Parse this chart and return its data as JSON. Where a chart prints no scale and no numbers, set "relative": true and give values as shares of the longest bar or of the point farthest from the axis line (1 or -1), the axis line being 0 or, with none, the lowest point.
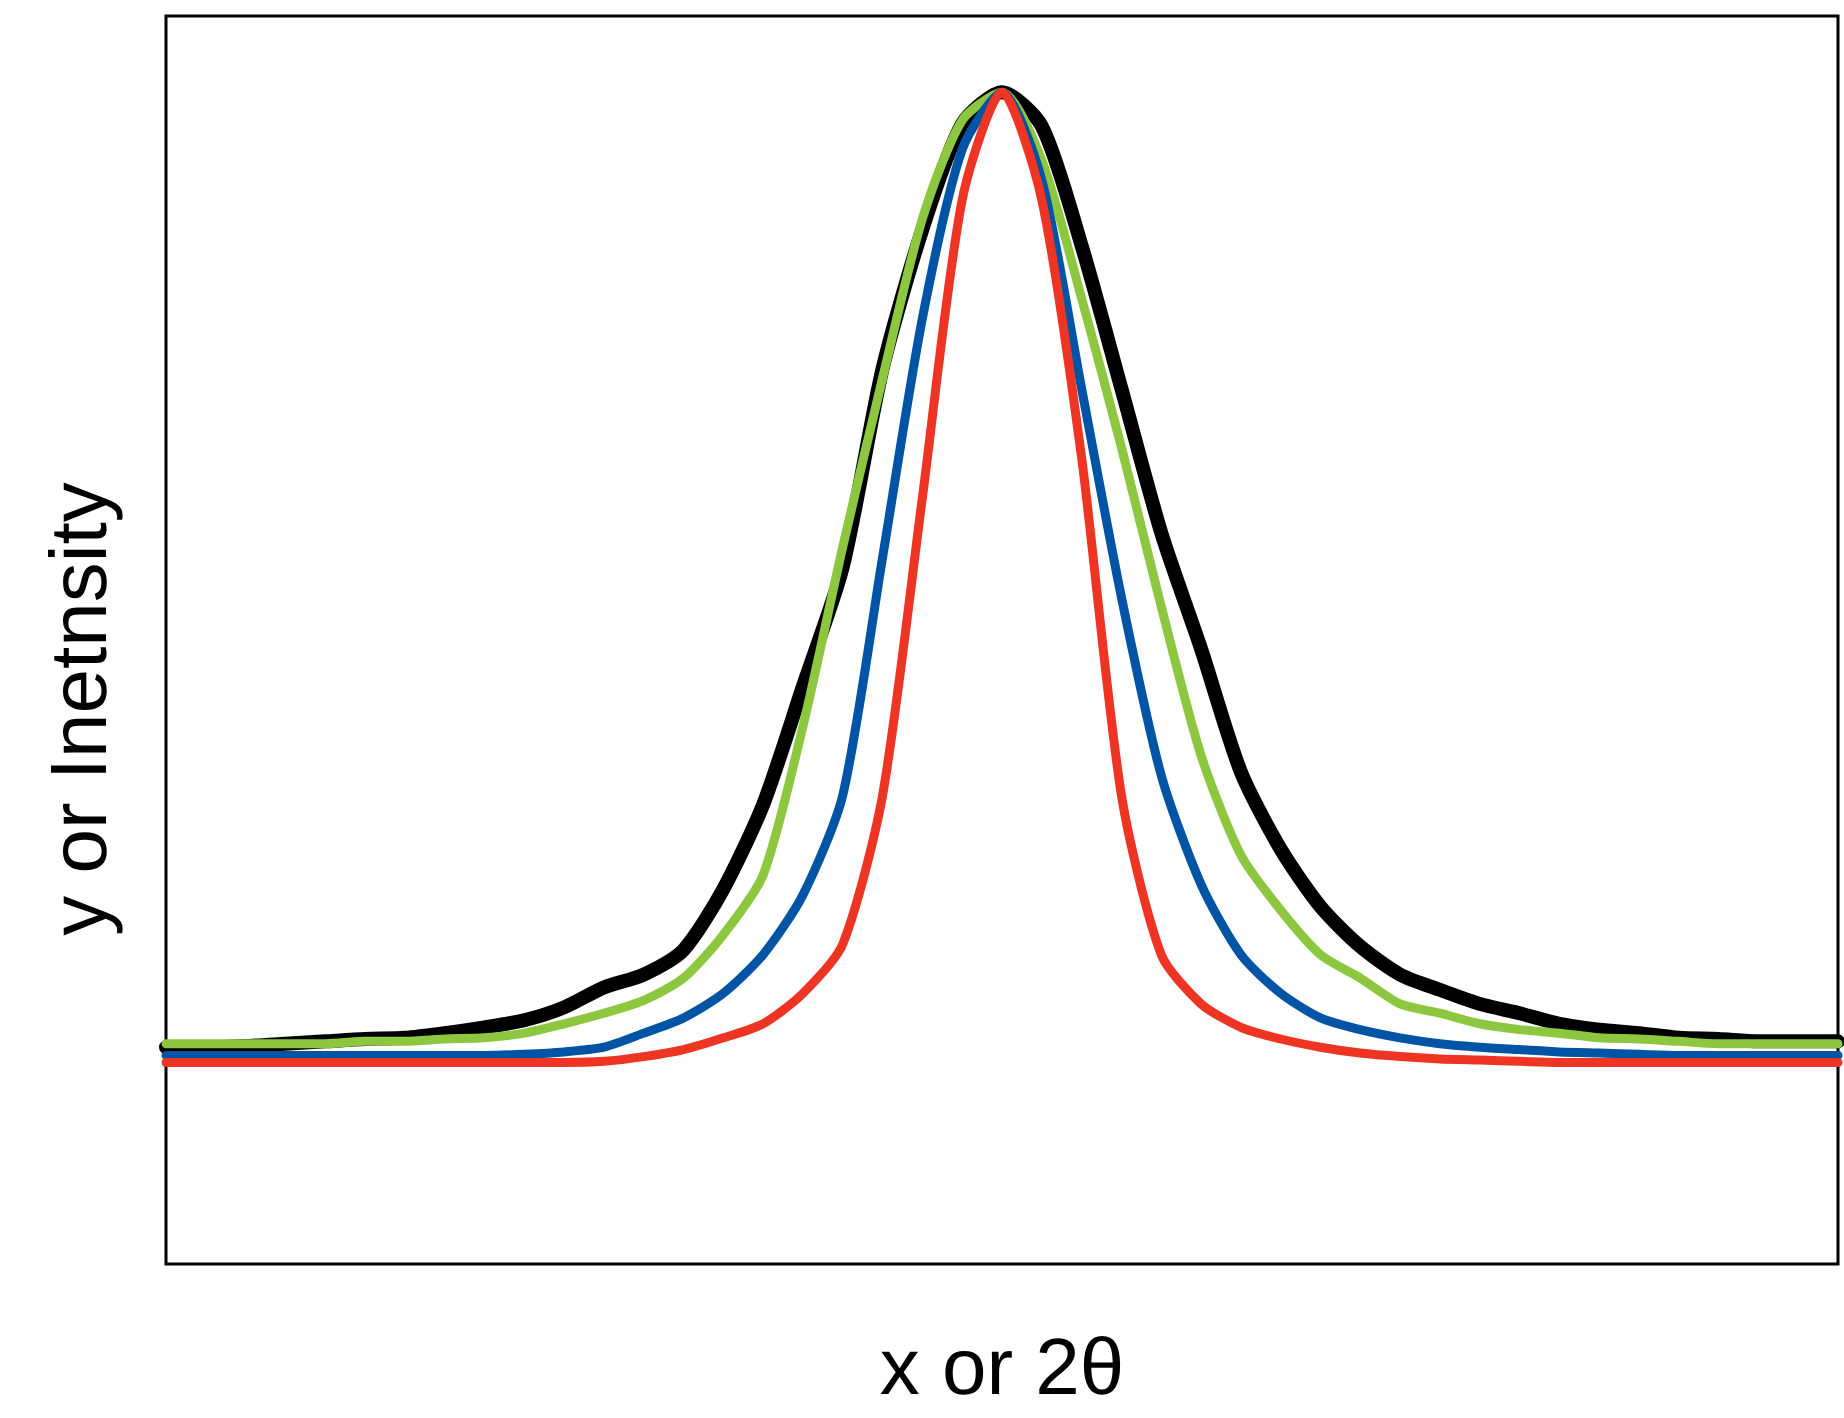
{
  "chart_data": {
    "type": "line",
    "relative": true,
    "xlabel": "x or 2θ",
    "ylabel": "y or Inetnsity",
    "marker": "none",
    "line_style": "solid",
    "categories": [
      null,
      null,
      null,
      null,
      null,
      null,
      null,
      null,
      null,
      null,
      null,
      null,
      null,
      null,
      null,
      null,
      null,
      null,
      null,
      null,
      null,
      null,
      null,
      null,
      null,
      null,
      null,
      null,
      null,
      null,
      null,
      null,
      null,
      null,
      null,
      null,
      null,
      null,
      null,
      null,
      null,
      null,
      null
    ],
    "series": [
      {
        "color": "#000000",
        "values": [
          0.185,
          0.185,
          0.186,
          0.188,
          0.19,
          0.192,
          0.193,
          0.197,
          0.202,
          0.208,
          0.219,
          0.236,
          0.247,
          0.268,
          0.32,
          0.392,
          0.493,
          0.595,
          0.764,
          0.883,
          0.973,
          1,
          0.971,
          0.869,
          0.747,
          0.624,
          0.525,
          0.42,
          0.354,
          0.305,
          0.271,
          0.247,
          0.234,
          0.222,
          0.214,
          0.205,
          0.2,
          0.197,
          0.193,
          0.192,
          0.19,
          0.19,
          0.19
        ]
      },
      {
        "color": "#8dc63f",
        "values": [
          0.188,
          0.188,
          0.188,
          0.188,
          0.188,
          0.19,
          0.19,
          0.192,
          0.193,
          0.197,
          0.205,
          0.214,
          0.225,
          0.244,
          0.281,
          0.332,
          0.459,
          0.612,
          0.756,
          0.892,
          0.976,
          1,
          0.942,
          0.824,
          0.697,
          0.561,
          0.434,
          0.349,
          0.302,
          0.264,
          0.244,
          0.222,
          0.214,
          0.205,
          0.2,
          0.197,
          0.193,
          0.192,
          0.19,
          0.188,
          0.188,
          0.188,
          0.188
        ]
      },
      {
        "color": "#0054a6",
        "values": [
          0.178,
          0.178,
          0.178,
          0.178,
          0.178,
          0.178,
          0.178,
          0.178,
          0.178,
          0.179,
          0.181,
          0.185,
          0.197,
          0.21,
          0.231,
          0.264,
          0.315,
          0.4,
          0.603,
          0.807,
          0.951,
          1,
          0.925,
          0.747,
          0.569,
          0.417,
          0.324,
          0.264,
          0.231,
          0.21,
          0.2,
          0.193,
          0.188,
          0.185,
          0.183,
          0.181,
          0.18,
          0.179,
          0.178,
          0.178,
          0.178,
          0.178,
          0.178
        ]
      },
      {
        "color": "#ee3524",
        "values": [
          0.172,
          0.172,
          0.172,
          0.172,
          0.172,
          0.172,
          0.172,
          0.172,
          0.172,
          0.172,
          0.172,
          0.173,
          0.177,
          0.183,
          0.193,
          0.205,
          0.231,
          0.273,
          0.4,
          0.654,
          0.908,
          1,
          0.908,
          0.688,
          0.4,
          0.264,
          0.222,
          0.202,
          0.192,
          0.185,
          0.18,
          0.177,
          0.175,
          0.174,
          0.173,
          0.172,
          0.172,
          0.172,
          0.172,
          0.172,
          0.172,
          0.172,
          0.172
        ]
      }
    ]
  }
}
